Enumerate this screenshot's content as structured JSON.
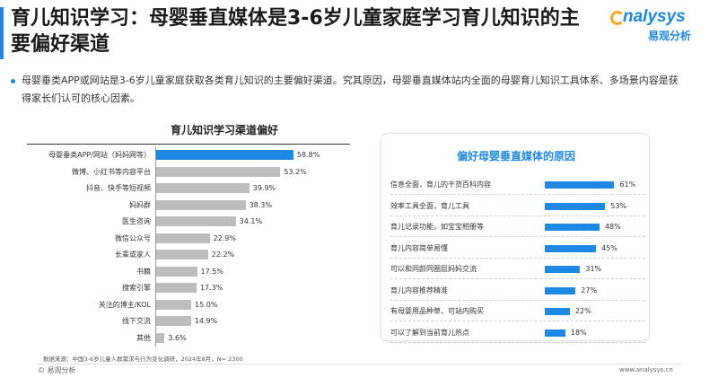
{
  "header": {
    "title": "育儿知识学习：母婴垂直媒体是3-6岁儿童家庭学习育儿知识的主要偏好渠道"
  },
  "logo": {
    "brand": "nalysys",
    "sub": "易观分析"
  },
  "description": "母婴垂类APP或网站是3-6岁儿童家庭获取各类育儿知识的主要偏好渠道。究其原因，母婴垂直媒体站内全面的母婴育儿知识工具体系、多场景内容是获得家长们认可的核心因素。",
  "source": "数据来源：中国3-6岁儿童人群需求与行为变化调研，2024年8月，N= 2300",
  "footer": {
    "left": "© 易观分析",
    "right": "www.analysys.cn"
  },
  "chart_data": [
    {
      "type": "bar",
      "orientation": "horizontal",
      "title": "育儿知识学习渠道偏好",
      "categories": [
        "母婴垂类APP/网站（妈妈网等）",
        "微博、小红书等内容平台",
        "抖音、快手等短视频",
        "妈妈群",
        "医生咨询",
        "微信公众号",
        "长辈或家人",
        "书籍",
        "搜索引擎",
        "关注的博主/KOL",
        "线下交流",
        "其他"
      ],
      "values": [
        58.8,
        53.2,
        39.9,
        38.3,
        34.1,
        22.9,
        22.2,
        17.5,
        17.3,
        15.0,
        14.9,
        3.6
      ],
      "labels": [
        "58.8%",
        "53.2%",
        "39.9%",
        "38.3%",
        "34.1%",
        "22.9%",
        "22.2%",
        "17.5%",
        "17.3%",
        "15.0%",
        "14.9%",
        "3.6%"
      ],
      "highlight_index": 0,
      "xlim": [
        0,
        100
      ],
      "colors": {
        "highlight": "#1e88e5",
        "default": "#bdbdbd"
      }
    },
    {
      "type": "bar",
      "orientation": "horizontal",
      "title": "偏好母婴垂直媒体的原因",
      "categories": [
        "信息全面，育儿的干货百科内容",
        "效率工具全面，育儿工具",
        "育儿记录功能，如宝宝相册等",
        "育儿内容简单易懂",
        "可以和同龄同圈层妈妈交流",
        "育儿内容推荐精准",
        "有母婴用品种草，可站内购买",
        "可以了解到当前育儿热点"
      ],
      "values": [
        61,
        53,
        48,
        45,
        31,
        27,
        22,
        18
      ],
      "labels": [
        "61%",
        "53%",
        "48%",
        "45%",
        "31%",
        "27%",
        "22%",
        "18%"
      ],
      "xlim": [
        0,
        100
      ],
      "colors": {
        "bar": "#1e88e5"
      }
    }
  ]
}
